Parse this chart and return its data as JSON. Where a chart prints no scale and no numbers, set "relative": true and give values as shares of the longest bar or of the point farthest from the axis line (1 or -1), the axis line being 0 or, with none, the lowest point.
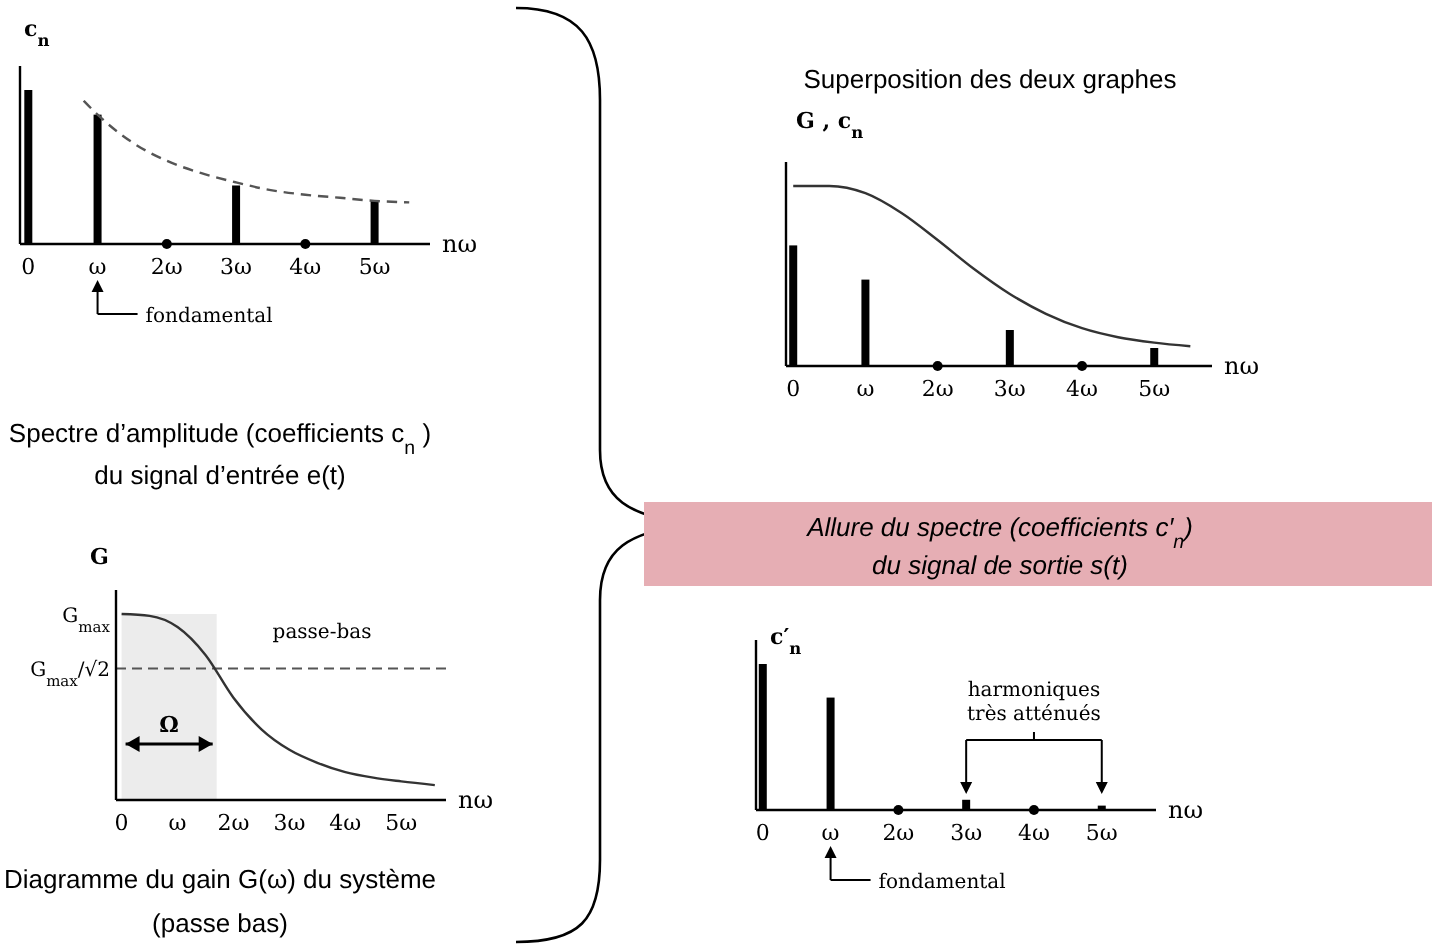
{
  "chart_data": [
    {
      "type": "bar",
      "title": "Spectre d’amplitude (coefficients c$_{n}$ )",
      "subtitle": "du signal d’entrée e(t)",
      "xlabel": "nω",
      "ylabel": "c$_{n}$",
      "relative": true,
      "line_style": "dashed",
      "xlim": [
        -0.12,
        5.8
      ],
      "xticks": [
        {
          "value": 0,
          "label": "0"
        },
        {
          "value": 1,
          "label": "ω"
        },
        {
          "value": 2,
          "label": "2ω"
        },
        {
          "value": 3,
          "label": "3ω"
        },
        {
          "value": 4,
          "label": "4ω"
        },
        {
          "value": 5,
          "label": "5ω"
        }
      ],
      "tick_labels": "x",
      "annotations": [
        "fondamental"
      ],
      "series": [
        {
          "color": "#000000",
          "x": [
            0,
            1,
            3,
            5
          ],
          "values": [
            1,
            0.84,
            0.38,
            0.28
          ]
        },
        {
          "type": "scatter",
          "marker": "circle",
          "color": "#000000",
          "x": [
            2,
            4
          ],
          "values": [
            0,
            0
          ]
        },
        {
          "type": "line",
          "color": "#555555",
          "x": [
            0.8,
            1,
            1.5,
            2,
            2.5,
            3,
            3.5,
            4,
            4.5,
            5,
            5.5
          ],
          "values": [
            0.93,
            0.84,
            0.66,
            0.54,
            0.46,
            0.4,
            0.35,
            0.32,
            0.3,
            0.28,
            0.27
          ]
        }
      ]
    },
    {
      "type": "line",
      "title": "Diagramme du gain G(ω) du système",
      "subtitle": "(passe bas)",
      "xlabel": "nω",
      "ylabel": "G",
      "relative": true,
      "xlim": [
        -0.1,
        5.8
      ],
      "xticks": [
        {
          "value": 0,
          "label": "0"
        },
        {
          "value": 1,
          "label": "ω"
        },
        {
          "value": 2,
          "label": "2ω"
        },
        {
          "value": 3,
          "label": "3ω"
        },
        {
          "value": 4,
          "label": "4ω"
        },
        {
          "value": 5,
          "label": "5ω"
        }
      ],
      "tick_labels": "x",
      "annotations": [
        "passe-bas",
        "G$_{max}$"
      ],
      "ref_lines": [
        {
          "axis": "y",
          "value": 0.707,
          "label": "G$_{max}$/√2",
          "line_style": "dashed",
          "color": "#555555"
        }
      ],
      "bands": [
        {
          "axis": "x",
          "from": 0,
          "to": 1.7,
          "label": "Ω",
          "color": "#ececec"
        }
      ],
      "series": [
        {
          "color": "#333333",
          "x": [
            0,
            0.5,
            1,
            1.5,
            2,
            2.5,
            3,
            3.5,
            4,
            4.5,
            5,
            5.6
          ],
          "values": [
            1,
            0.99,
            0.93,
            0.78,
            0.55,
            0.38,
            0.27,
            0.2,
            0.15,
            0.12,
            0.1,
            0.08
          ]
        }
      ]
    },
    {
      "type": "bar",
      "title": "Superposition des deux graphes",
      "xlabel": "nω",
      "ylabel": "G , c$_{n}$",
      "relative": true,
      "xlim": [
        -0.1,
        5.8
      ],
      "xticks": [
        {
          "value": 0,
          "label": "0"
        },
        {
          "value": 1,
          "label": "ω"
        },
        {
          "value": 2,
          "label": "2ω"
        },
        {
          "value": 3,
          "label": "3ω"
        },
        {
          "value": 4,
          "label": "4ω"
        },
        {
          "value": 5,
          "label": "5ω"
        }
      ],
      "tick_labels": "x",
      "series": [
        {
          "color": "#000000",
          "x": [
            0,
            1,
            3,
            5
          ],
          "values": [
            0.67,
            0.48,
            0.2,
            0.1
          ]
        },
        {
          "type": "scatter",
          "marker": "circle",
          "color": "#000000",
          "x": [
            2,
            4
          ],
          "values": [
            0,
            0
          ]
        },
        {
          "type": "line",
          "color": "#333333",
          "x": [
            0,
            0.5,
            1,
            1.5,
            2,
            2.5,
            3,
            3.5,
            4,
            4.5,
            5,
            5.5
          ],
          "values": [
            1,
            1,
            0.96,
            0.85,
            0.7,
            0.54,
            0.4,
            0.29,
            0.21,
            0.16,
            0.13,
            0.11
          ]
        }
      ]
    },
    {
      "type": "bar",
      "title": "Allure du spectre (coefficients c′$_{n}$)",
      "subtitle": "du signal de sortie s(t)",
      "xlabel": "nω",
      "ylabel": "c′$_{n}$",
      "relative": true,
      "xlim": [
        -0.1,
        5.8
      ],
      "xticks": [
        {
          "value": 0,
          "label": "0"
        },
        {
          "value": 1,
          "label": "ω"
        },
        {
          "value": 2,
          "label": "2ω"
        },
        {
          "value": 3,
          "label": "3ω"
        },
        {
          "value": 4,
          "label": "4ω"
        },
        {
          "value": 5,
          "label": "5ω"
        }
      ],
      "tick_labels": "x",
      "annotations": [
        "harmoniques très atténués",
        "fondamental"
      ],
      "series": [
        {
          "color": "#000000",
          "x": [
            0,
            1,
            3,
            5
          ],
          "values": [
            1,
            0.77,
            0.07,
            0.03
          ]
        },
        {
          "type": "scatter",
          "marker": "circle",
          "color": "#000000",
          "x": [
            2,
            4
          ],
          "values": [
            0,
            0
          ]
        }
      ]
    }
  ]
}
